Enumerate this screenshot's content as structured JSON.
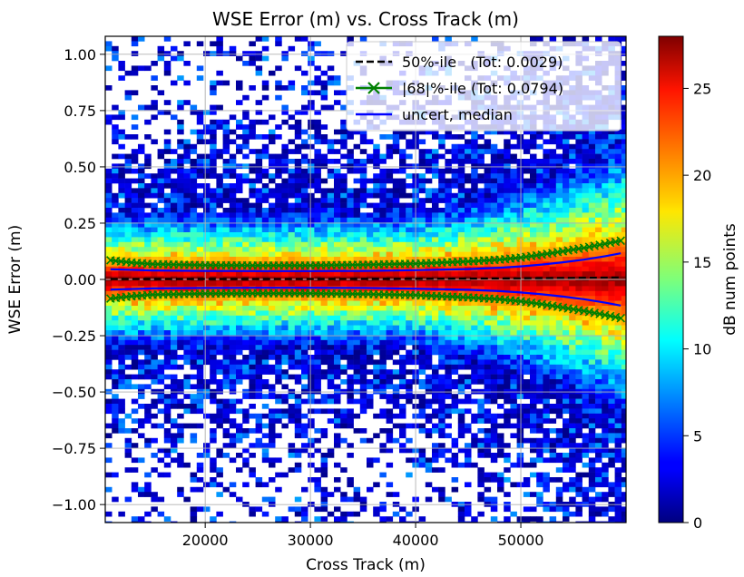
{
  "chart_data": {
    "type": "heatmap",
    "title": "WSE Error (m) vs. Cross Track (m)",
    "xlabel": "Cross Track (m)",
    "ylabel": "WSE Error (m)",
    "xlim": [
      10500,
      60000
    ],
    "ylim": [
      -1.08,
      1.08
    ],
    "x_ticks": [
      20000,
      30000,
      40000,
      50000
    ],
    "x_tick_labels": [
      "20000",
      "30000",
      "40000",
      "50000"
    ],
    "y_ticks": [
      1.0,
      0.75,
      0.5,
      0.25,
      0.0,
      -0.25,
      -0.5,
      -0.75,
      -1.0
    ],
    "y_tick_labels": [
      "1.00",
      "0.75",
      "0.50",
      "0.25",
      "0.00",
      "−0.25",
      "−0.50",
      "−0.75",
      "−1.00"
    ],
    "grid": true,
    "colorbar": {
      "label": "dB num points",
      "range": [
        0,
        28
      ],
      "ticks": [
        0,
        5,
        10,
        15,
        20,
        25
      ],
      "tick_labels": [
        "0",
        "5",
        "10",
        "15",
        "20",
        "25"
      ],
      "colormap": "jet"
    },
    "legend": {
      "placement": "top-right",
      "entries": [
        {
          "label": "50%-ile   (Tot: 0.0029)",
          "color": "#000000",
          "style": "dashed"
        },
        {
          "label": "|68|%-ile (Tot: 0.0794)",
          "color": "#008000",
          "style": "line-x-marker"
        },
        {
          "label": "uncert, median",
          "color": "#0000ff",
          "style": "solid"
        }
      ]
    },
    "series": [
      {
        "name": "50%-ile",
        "x": [
          11000,
          20000,
          30000,
          40000,
          45000,
          50000,
          55000,
          59500
        ],
        "values": [
          0.002,
          0.002,
          0.002,
          0.003,
          0.004,
          0.005,
          0.007,
          0.009
        ]
      },
      {
        "name": "|68|%-ile",
        "x": [
          11000,
          13000,
          15000,
          20000,
          25000,
          30000,
          35000,
          40000,
          45000,
          48000,
          50000,
          52000,
          54000,
          56000,
          58000,
          59500
        ],
        "upper": [
          0.085,
          0.075,
          0.068,
          0.063,
          0.062,
          0.062,
          0.065,
          0.07,
          0.08,
          0.088,
          0.097,
          0.11,
          0.125,
          0.14,
          0.158,
          0.172
        ],
        "lower": [
          -0.085,
          -0.075,
          -0.068,
          -0.063,
          -0.062,
          -0.062,
          -0.065,
          -0.07,
          -0.08,
          -0.088,
          -0.097,
          -0.11,
          -0.125,
          -0.14,
          -0.158,
          -0.172
        ]
      },
      {
        "name": "uncert, median",
        "x": [
          11000,
          15000,
          20000,
          25000,
          30000,
          35000,
          40000,
          45000,
          48000,
          50000,
          52000,
          54000,
          56000,
          58000,
          59500
        ],
        "upper": [
          0.045,
          0.04,
          0.038,
          0.037,
          0.037,
          0.038,
          0.041,
          0.046,
          0.052,
          0.058,
          0.066,
          0.076,
          0.088,
          0.103,
          0.116
        ],
        "lower": [
          -0.045,
          -0.04,
          -0.038,
          -0.037,
          -0.037,
          -0.038,
          -0.041,
          -0.046,
          -0.052,
          -0.058,
          -0.066,
          -0.076,
          -0.088,
          -0.103,
          -0.116
        ]
      }
    ]
  }
}
